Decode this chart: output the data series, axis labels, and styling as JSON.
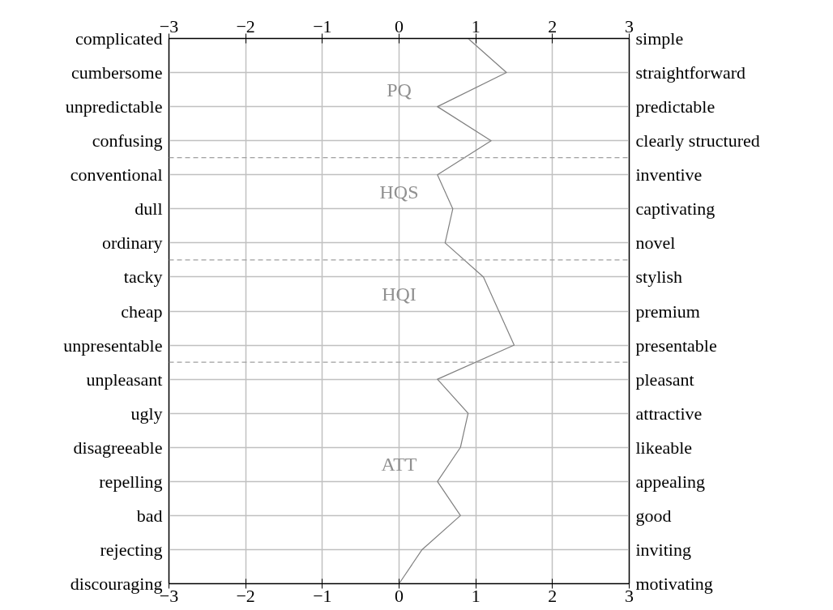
{
  "chart_data": {
    "type": "line",
    "orientation": "horizontal",
    "categories": [
      "complicated",
      "cumbersome",
      "unpredictable",
      "confusing",
      "conventional",
      "dull",
      "ordinary",
      "tacky",
      "cheap",
      "unpresentable",
      "unpleasant",
      "ugly",
      "disagreeable",
      "repelling",
      "bad",
      "rejecting",
      "discouraging"
    ],
    "y2_categories": [
      "simple",
      "straightforward",
      "predictable",
      "clearly structured",
      "inventive",
      "captivating",
      "novel",
      "stylish",
      "premium",
      "presentable",
      "pleasant",
      "attractive",
      "likeable",
      "appealing",
      "good",
      "inviting",
      "motivating"
    ],
    "series": [
      {
        "color": "#808080",
        "values": [
          0.9,
          1.4,
          0.5,
          1.2,
          0.5,
          0.7,
          0.6,
          1.1,
          1.3,
          1.5,
          0.5,
          0.9,
          0.8,
          0.5,
          0.8,
          0.3,
          0.0
        ]
      }
    ],
    "xlim": [
      -3,
      3
    ],
    "xticks": [
      {
        "value": -3,
        "label": "−3"
      },
      {
        "value": -2,
        "label": "−2"
      },
      {
        "value": -1,
        "label": "−1"
      },
      0,
      1,
      2,
      3
    ],
    "x2lim": [
      -3,
      3
    ],
    "x2ticks": [
      {
        "value": -3,
        "label": "−3"
      },
      {
        "value": -2,
        "label": "−2"
      },
      {
        "value": -1,
        "label": "−1"
      },
      0,
      1,
      2,
      3
    ],
    "annotations": [
      "PQ",
      "HQS",
      "HQI",
      "ATT"
    ],
    "grid": true,
    "marker": "none",
    "line_style": "solid"
  }
}
